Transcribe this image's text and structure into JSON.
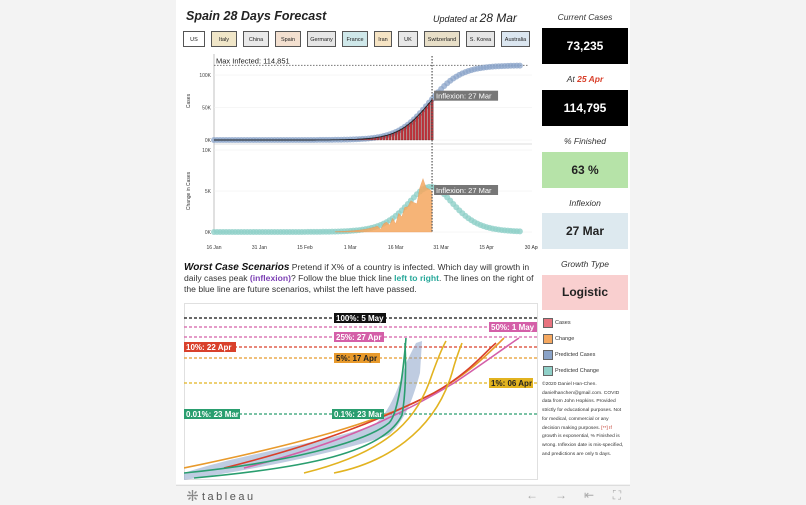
{
  "header": {
    "title": "Spain 28 Days Forecast",
    "updated_prefix": "Updated at",
    "updated_date": "28 Mar"
  },
  "countries": [
    "US",
    "Italy",
    "China",
    "Spain",
    "Germany",
    "France",
    "Iran",
    "UK",
    "Switzerland",
    "S. Korea",
    "Australia"
  ],
  "country_colors": [
    "#ffffff",
    "#f0e6c8",
    "#e9e9e9",
    "#f3e0d0",
    "#e6e6e6",
    "#cfe8ea",
    "#f6e4c4",
    "#e8e8e8",
    "#e8dfc8",
    "#e6e6e6",
    "#dbe6f0"
  ],
  "stats": {
    "current_cases_label": "Current Cases",
    "current_cases": "73,235",
    "at_prefix": "At",
    "at_date": "25 Apr",
    "predicted_cases": "114,795",
    "finished_label": "% Finished",
    "finished": "63 %",
    "inflexion_label": "Inflexion",
    "inflexion": "27 Mar",
    "growth_label": "Growth Type",
    "growth": "Logistic"
  },
  "worst_case": {
    "heading": "Worst Case Scenarios",
    "text1": " Pretend if X% of a country is infected. Which day will growth in daily cases peak ",
    "inflexion_word": "(inflexion)",
    "text2": "? Follow the blue thick line ",
    "left_to_right": "left to right",
    "text3": ". The lines on the right of the blue line are future scenarios, whilst the left have passed."
  },
  "legend": [
    {
      "label": "Cases",
      "color": "#e8737f"
    },
    {
      "label": "Change",
      "color": "#f5a860"
    },
    {
      "label": "Predicted Cases",
      "color": "#8aa3c8"
    },
    {
      "label": "Predicted Change",
      "color": "#8fd0c8"
    }
  ],
  "credits": {
    "line1": "©2020 Daniel Han-Chen.",
    "line2": "danielhanchen@gmail.com. COVID",
    "line3": "data from John Hopkins. Provided",
    "line4": "strictly for educational purposes. Not",
    "line5": "for medical, commercial or any",
    "line6": "decision making purposes.",
    "warn": " [**] If",
    "line7": "growth is exponential, % Finished is",
    "line8": "wrong. Inflexion date is mis-specified,",
    "line9": "and predictions are only 5 days."
  },
  "chart_data": [
    {
      "type": "line",
      "ylabel": "Cases",
      "y_ticks": [
        "0K",
        "50K",
        "100K"
      ],
      "ylim": [
        0,
        120000
      ],
      "x_ticks": [
        "16 Jan",
        "31 Jan",
        "15 Feb",
        "1 Mar",
        "16 Mar",
        "31 Mar",
        "15 Apr",
        "30 Apr"
      ],
      "max_label": "Max Infected: 114,851",
      "max_value": 114851,
      "inflexion_label": "Inflexion: 27 Mar",
      "series": [
        {
          "name": "Predicted Cases",
          "color": "#8aa3c8",
          "style": "dots"
        },
        {
          "name": "Cases",
          "color": "#c0363e",
          "style": "bars"
        }
      ]
    },
    {
      "type": "area",
      "ylabel": "Change in Cases",
      "y_ticks": [
        "0K",
        "5K",
        "10K"
      ],
      "ylim": [
        0,
        10000
      ],
      "inflexion_label": "Inflexion: 27 Mar",
      "peak_value": 9500,
      "series": [
        {
          "name": "Predicted Change",
          "color": "#8fd0c8",
          "style": "dots"
        },
        {
          "name": "Change",
          "color": "#f5a860",
          "style": "area"
        }
      ]
    },
    {
      "type": "line",
      "scenarios": [
        {
          "label": "100%: 5 May",
          "color": "#111111",
          "level": 1.0
        },
        {
          "label": "50%: 1 May",
          "color": "#d45fa8",
          "level": 0.5
        },
        {
          "label": "25%: 27 Apr",
          "color": "#d45fa8",
          "level": 0.25
        },
        {
          "label": "10%: 22 Apr",
          "color": "#d9402b",
          "level": 0.1
        },
        {
          "label": "5%: 17 Apr",
          "color": "#e89a2c",
          "level": 0.05
        },
        {
          "label": "1%: 06 Apr",
          "color": "#e2b320",
          "level": 0.01
        },
        {
          "label": "0.1%: 23 Mar",
          "color": "#2a9e6f",
          "level": 0.001
        },
        {
          "label": "0.01%: 23 Mar",
          "color": "#2a9e6f",
          "level": 0.0001
        }
      ]
    }
  ],
  "toolbar": {
    "logo": "tableau",
    "undo": "←",
    "redo": "→",
    "revert": "⇤",
    "fullscreen": "⛶"
  }
}
